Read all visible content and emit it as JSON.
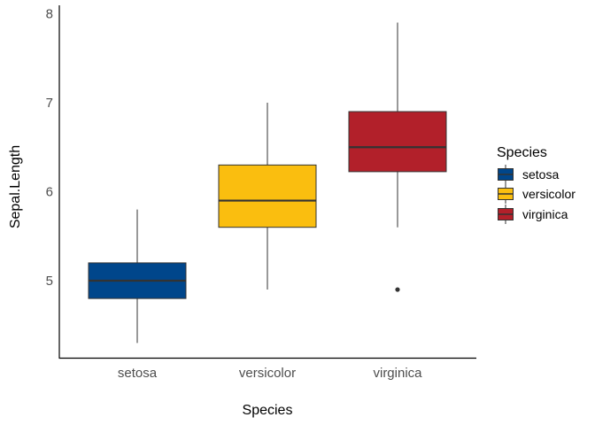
{
  "chart_data": {
    "type": "boxplot",
    "title": "",
    "xlabel": "Species",
    "ylabel": "Sepal.Length",
    "ylim": [
      4.15,
      8.05
    ],
    "yticks": [
      5,
      6,
      7,
      8
    ],
    "ytick_labels": [
      "5",
      "6",
      "7",
      "8"
    ],
    "categories": [
      "setosa",
      "versicolor",
      "virginica"
    ],
    "grid": false,
    "legend": {
      "title": "Species",
      "placement": "right",
      "entries": [
        "setosa",
        "versicolor",
        "virginica"
      ]
    },
    "series": [
      {
        "name": "setosa",
        "color": "#00468B",
        "min": 4.3,
        "q1": 4.8,
        "median": 5.0,
        "q3": 5.2,
        "max": 5.8,
        "outliers": []
      },
      {
        "name": "versicolor",
        "color": "#FABE0F",
        "min": 4.9,
        "q1": 5.6,
        "median": 5.9,
        "q3": 6.3,
        "max": 7.0,
        "outliers": []
      },
      {
        "name": "virginica",
        "color": "#B2202A",
        "min": 5.6,
        "q1": 6.225,
        "median": 6.5,
        "q3": 6.9,
        "max": 7.9,
        "outliers": [
          4.9
        ]
      }
    ]
  }
}
